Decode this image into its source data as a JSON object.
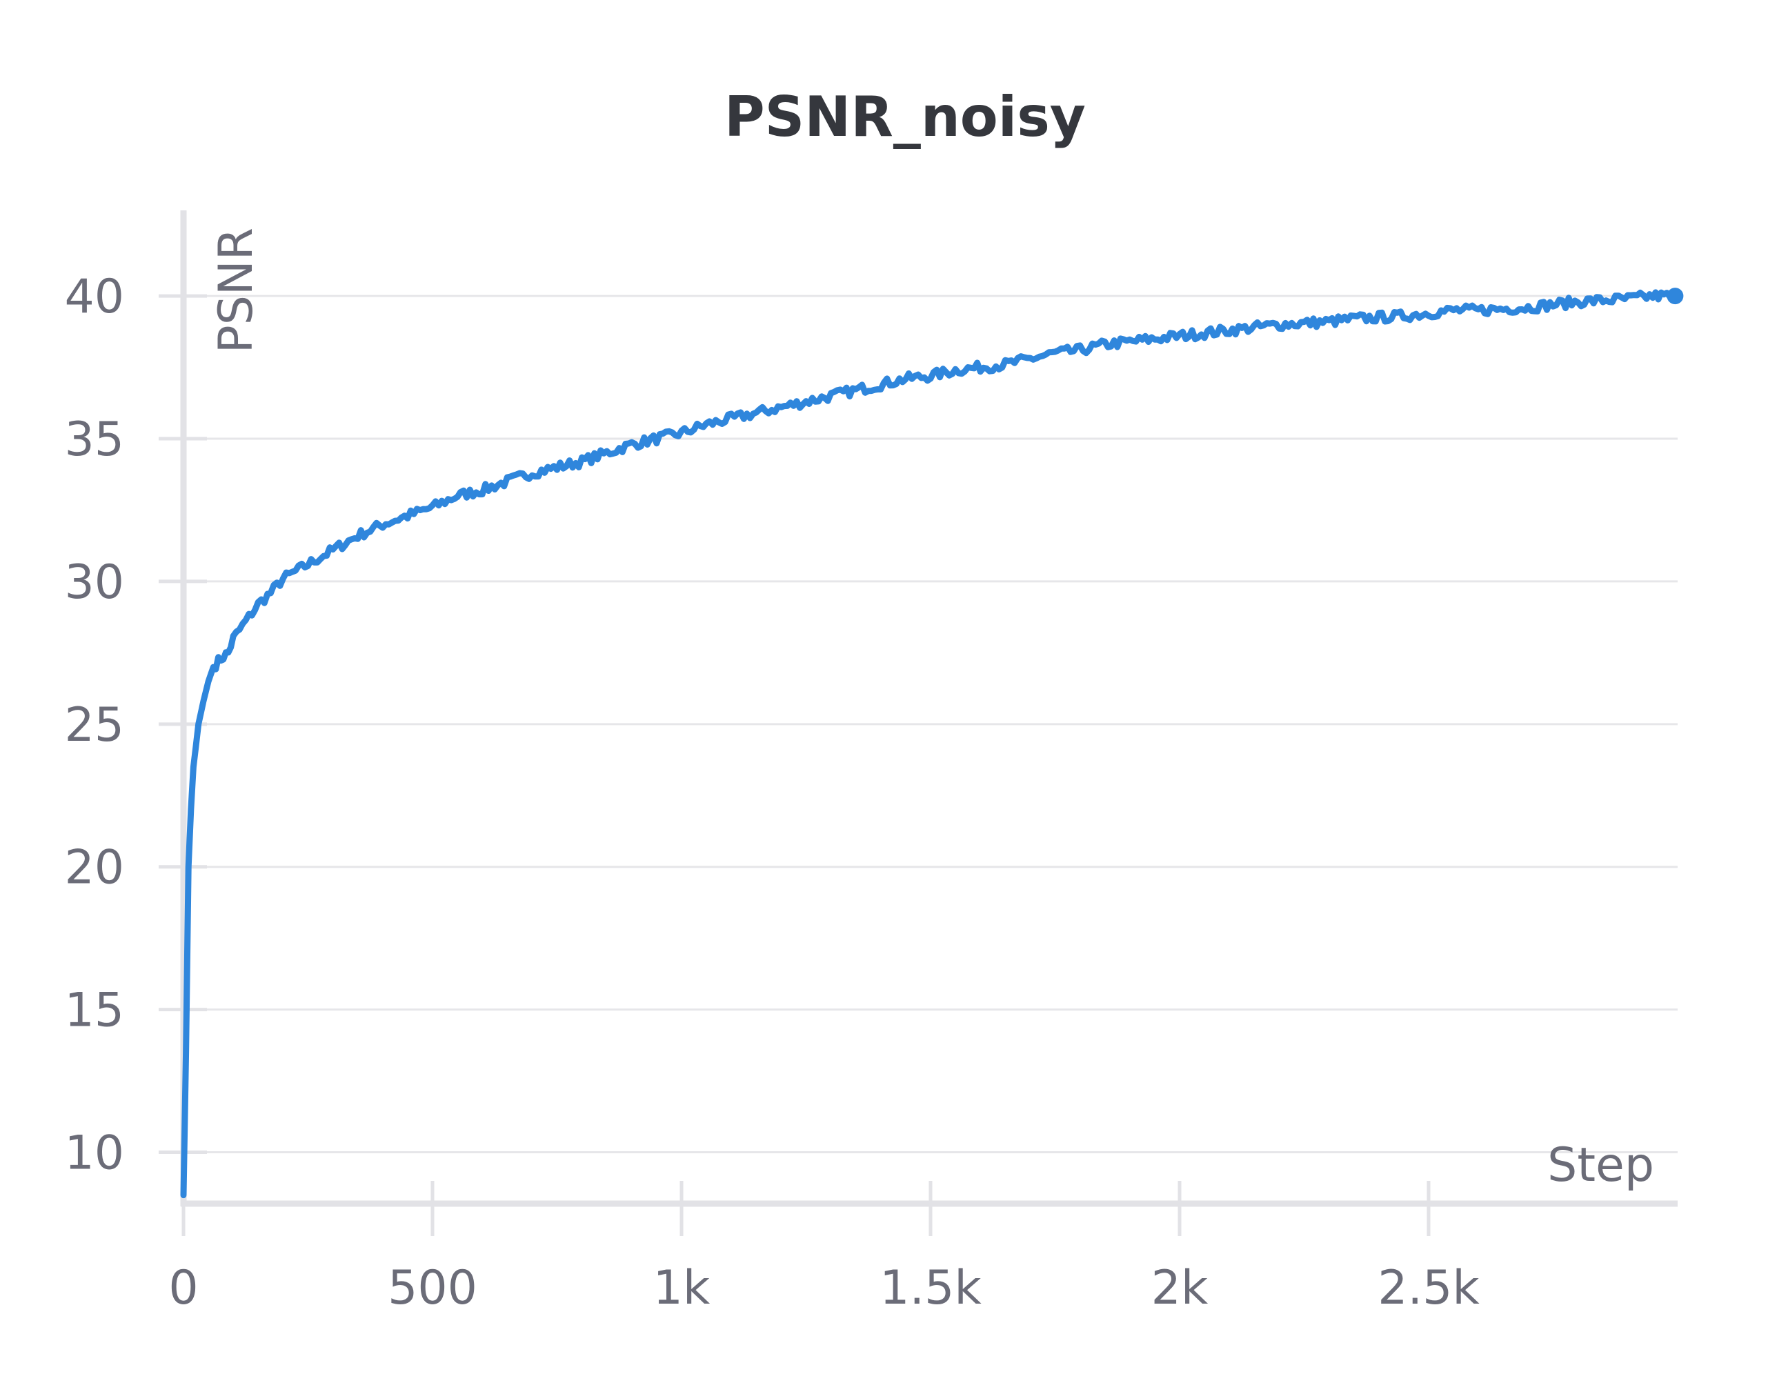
{
  "chart_data": {
    "type": "line",
    "title": "PSNR_noisy",
    "xlabel": "Step",
    "ylabel": "PSNR",
    "xlim": [
      0,
      3000
    ],
    "ylim": [
      8.2,
      43
    ],
    "x_ticks": [
      0,
      500,
      1000,
      1500,
      2000,
      2500
    ],
    "x_tick_labels": [
      "0",
      "500",
      "1k",
      "1.5k",
      "2k",
      "2.5k"
    ],
    "y_ticks": [
      10,
      15,
      20,
      25,
      30,
      35,
      40
    ],
    "y_tick_labels": [
      "10",
      "15",
      "20",
      "25",
      "30",
      "35",
      "40"
    ],
    "grid": true,
    "series": [
      {
        "color": "#2f86dc",
        "x": [
          0,
          5,
          10,
          15,
          20,
          30,
          40,
          50,
          60,
          75,
          90,
          100,
          125,
          150,
          175,
          200,
          250,
          300,
          350,
          400,
          450,
          500,
          550,
          600,
          650,
          700,
          750,
          800,
          850,
          900,
          950,
          1000,
          1050,
          1100,
          1150,
          1200,
          1250,
          1300,
          1350,
          1400,
          1450,
          1500,
          1550,
          1600,
          1650,
          1700,
          1750,
          1800,
          1850,
          1900,
          1950,
          2000,
          2050,
          2100,
          2150,
          2200,
          2250,
          2300,
          2350,
          2400,
          2450,
          2500,
          2550,
          2600,
          2650,
          2700,
          2750,
          2800,
          2850,
          2900,
          2950,
          2995
        ],
        "y": [
          8.5,
          13.5,
          20.0,
          22.0,
          23.5,
          25.0,
          25.8,
          26.5,
          27.0,
          27.3,
          27.5,
          28.0,
          28.6,
          29.2,
          29.6,
          30.1,
          30.6,
          31.1,
          31.6,
          32.0,
          32.3,
          32.6,
          33.0,
          33.2,
          33.5,
          33.8,
          34.0,
          34.2,
          34.5,
          34.8,
          35.0,
          35.2,
          35.5,
          35.7,
          35.9,
          36.1,
          36.3,
          36.5,
          36.7,
          36.9,
          37.1,
          37.2,
          37.4,
          37.5,
          37.6,
          37.8,
          38.0,
          38.1,
          38.3,
          38.4,
          38.5,
          38.6,
          38.7,
          38.8,
          38.9,
          39.0,
          39.05,
          39.1,
          39.2,
          39.25,
          39.3,
          39.4,
          39.5,
          39.5,
          39.55,
          39.6,
          39.7,
          39.8,
          39.85,
          39.9,
          40.0,
          40.0
        ]
      }
    ]
  }
}
